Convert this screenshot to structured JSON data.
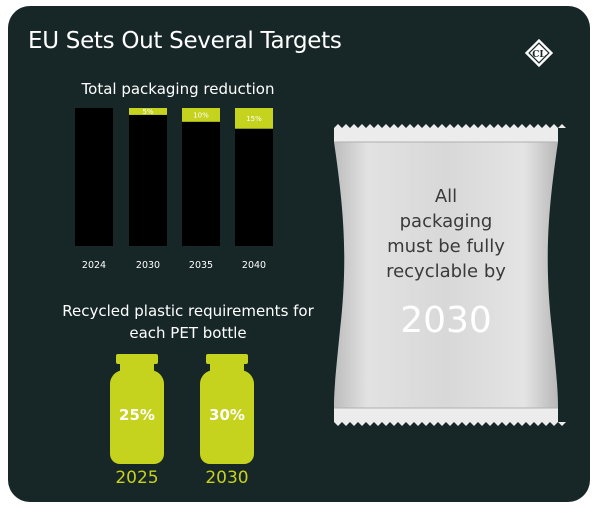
{
  "title": "EU Sets Out Several Targets",
  "logo": {
    "text": "CL",
    "icon": "diamond-logo-icon"
  },
  "packaging_chart": {
    "title": "Total packaging reduction"
  },
  "chart_data": {
    "type": "bar",
    "title": "Total packaging reduction",
    "categories": [
      "2024",
      "2030",
      "2035",
      "2040"
    ],
    "series": [
      {
        "values": [
          100,
          95,
          90,
          85
        ],
        "color": "#000000"
      },
      {
        "values": [
          0,
          5,
          10,
          15
        ],
        "color": "#c5d21e"
      }
    ],
    "data_labels": [
      "",
      "5%",
      "10%",
      "15%"
    ],
    "stacked": true,
    "ylim": [
      0,
      100
    ],
    "grid": false,
    "legend": "none"
  },
  "recycled": {
    "title_line1": "Recycled plastic requirements for",
    "title_line2": "each PET bottle",
    "bottles": [
      {
        "pct": "25%",
        "year": "2025"
      },
      {
        "pct": "30%",
        "year": "2030"
      }
    ],
    "color": "#c5d21e"
  },
  "bag": {
    "line1": "All",
    "line2": "packaging",
    "line3": "must be fully",
    "line4": "recyclable by",
    "year": "2030"
  },
  "colors": {
    "background": "#172626",
    "accent": "#c5d21e",
    "bag": "#d6d6d6"
  }
}
